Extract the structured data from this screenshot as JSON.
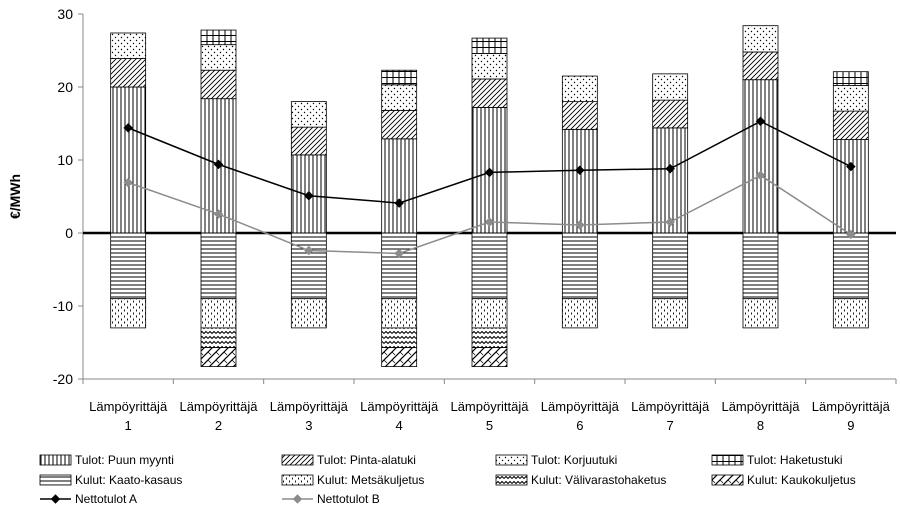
{
  "chart_data": {
    "type": "bar",
    "stacked": true,
    "ylabel": "€/MWh",
    "ylim": [
      -20,
      30
    ],
    "yticks": [
      -20,
      -10,
      0,
      10,
      20,
      30
    ],
    "categories": [
      [
        "Lämpöyrittäjä",
        "1"
      ],
      [
        "Lämpöyrittäjä",
        "2"
      ],
      [
        "Lämpöyrittäjä",
        "3"
      ],
      [
        "Lämpöyrittäjä",
        "4"
      ],
      [
        "Lämpöyrittäjä",
        "5"
      ],
      [
        "Lämpöyrittäjä",
        "6"
      ],
      [
        "Lämpöyrittäjä",
        "7"
      ],
      [
        "Lämpöyrittäjä",
        "8"
      ],
      [
        "Lämpöyrittäjä",
        "9"
      ]
    ],
    "series": [
      {
        "name": "Tulot: Puun myynti",
        "kind": "bar",
        "pattern": "vlines",
        "values": [
          20.0,
          18.4,
          10.7,
          12.9,
          17.2,
          14.2,
          14.4,
          21.0,
          12.8
        ]
      },
      {
        "name": "Tulot: Pinta-alatuki",
        "kind": "bar",
        "pattern": "diag",
        "values": [
          3.9,
          3.9,
          3.8,
          3.9,
          3.9,
          3.8,
          3.8,
          3.8,
          3.9
        ]
      },
      {
        "name": "Tulot: Korjuutuki",
        "kind": "bar",
        "pattern": "dots",
        "values": [
          3.5,
          3.5,
          3.5,
          3.5,
          3.5,
          3.5,
          3.6,
          3.6,
          3.5
        ]
      },
      {
        "name": "Tulot: Haketustuki",
        "kind": "bar",
        "pattern": "grid",
        "values": [
          0,
          2.0,
          0,
          2.0,
          2.1,
          0,
          0,
          0,
          1.9
        ]
      },
      {
        "name": "Kulut: Kaato-kasaus",
        "kind": "bar",
        "pattern": "hlines",
        "values": [
          -9.0,
          -9.0,
          -9.0,
          -9.0,
          -9.0,
          -9.0,
          -9.0,
          -9.0,
          -9.0
        ]
      },
      {
        "name": "Kulut: Metsäkuljetus",
        "kind": "bar",
        "pattern": "dashes",
        "values": [
          -4.0,
          -4.0,
          -4.0,
          -4.0,
          -4.0,
          -4.0,
          -4.0,
          -4.0,
          -4.0
        ]
      },
      {
        "name": "Kulut: Välivarastohaketus",
        "kind": "bar",
        "pattern": "zigzag",
        "values": [
          0,
          -2.7,
          0,
          -2.7,
          -2.7,
          0,
          0,
          0,
          0
        ]
      },
      {
        "name": "Kulut: Kaukokuljetus",
        "kind": "bar",
        "pattern": "bigdiag",
        "values": [
          0,
          -2.6,
          0,
          -2.6,
          -2.6,
          0,
          0,
          0,
          0
        ]
      },
      {
        "name": "Nettotulot A",
        "kind": "line",
        "color": "#000000",
        "marker": "diamond",
        "values": [
          14.4,
          9.4,
          5.1,
          4.1,
          8.3,
          8.6,
          8.8,
          15.3,
          9.1
        ]
      },
      {
        "name": "Nettotulot B",
        "kind": "line",
        "color": "#8c8c8c",
        "marker": "diamond",
        "values": [
          6.9,
          2.6,
          -2.4,
          -2.8,
          1.5,
          1.1,
          1.5,
          7.9,
          -0.2
        ]
      }
    ],
    "legend": {
      "position": "bottom",
      "columns": 4
    },
    "grid": false
  }
}
